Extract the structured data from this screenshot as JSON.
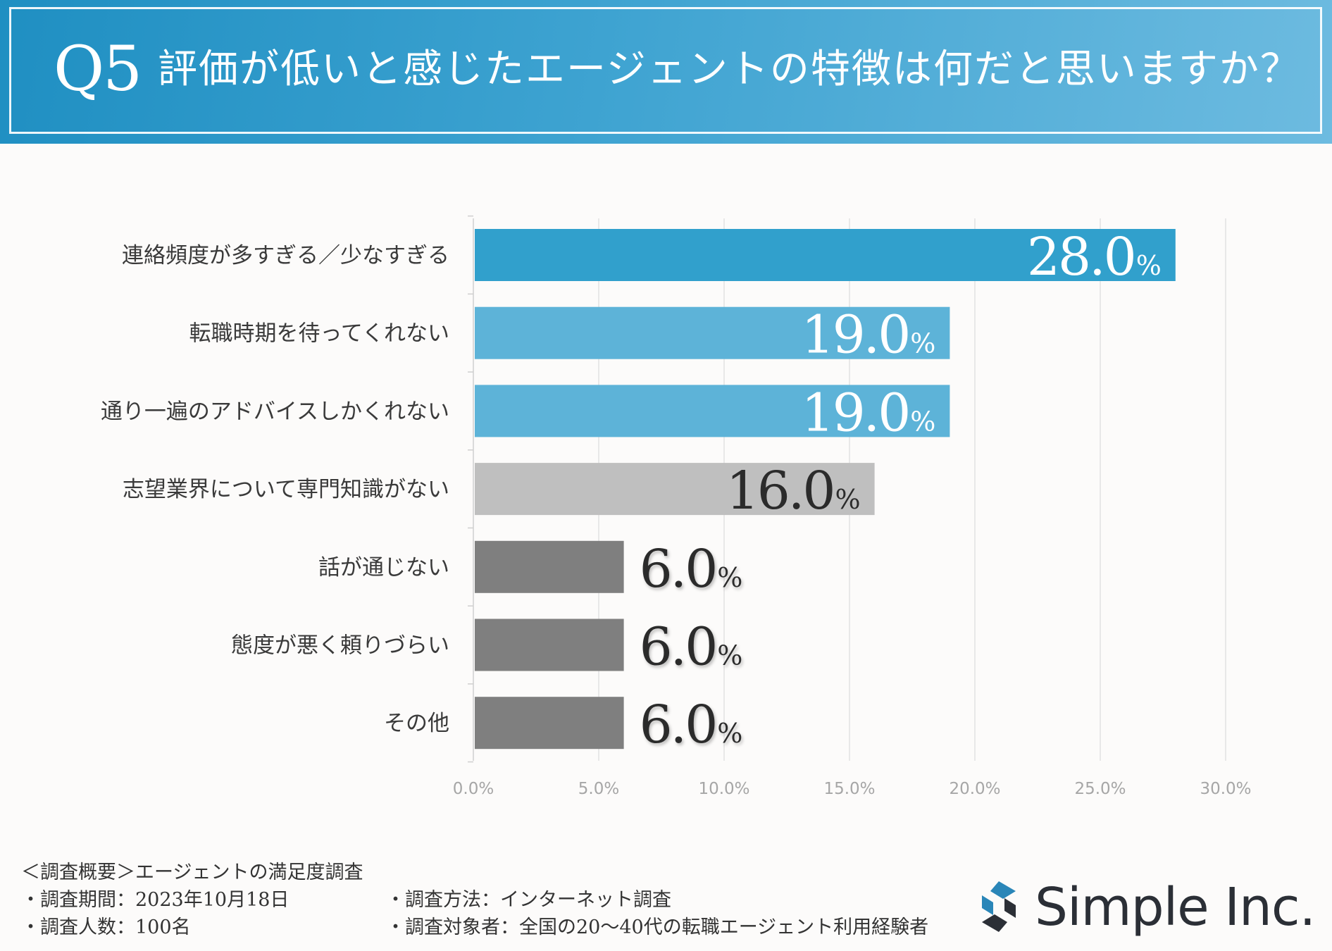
{
  "header": {
    "question_label": "Q5",
    "title": "評価が低いと感じたエージェントの特徴は何だと思いますか？"
  },
  "colors": {
    "header_start": "#1f8fc2",
    "header_end": "#6dbbe0",
    "bar_top": "#31a0cc",
    "bar_blue": "#5db3d8",
    "bar_light_gray": "#bfbfbf",
    "bar_dark_gray": "#7f7f7f",
    "grid": "#e1e1e1",
    "tick_text": "#a6a6a6"
  },
  "chart_data": {
    "type": "bar",
    "orientation": "horizontal",
    "categories": [
      "連絡頻度が多すぎる／少なすぎる",
      "転職時期を待ってくれない",
      "通り一遍のアドバイスしかくれない",
      "志望業界について専門知識がない",
      "話が通じない",
      "態度が悪く頼りづらい",
      "その他"
    ],
    "values": [
      28.0,
      19.0,
      19.0,
      16.0,
      6.0,
      6.0,
      6.0
    ],
    "data_labels": [
      "28.0",
      "19.0",
      "19.0",
      "16.0",
      "6.0",
      "6.0",
      "6.0"
    ],
    "label_unit": "%",
    "bar_color_keys": [
      "bar_top",
      "bar_blue",
      "bar_blue",
      "bar_light_gray",
      "bar_dark_gray",
      "bar_dark_gray",
      "bar_dark_gray"
    ],
    "label_inside": [
      true,
      true,
      true,
      true,
      false,
      false,
      false
    ],
    "label_colors": [
      "#ffffff",
      "#ffffff",
      "#ffffff",
      "#2b2b2b",
      "#2b2b2b",
      "#2b2b2b",
      "#2b2b2b"
    ],
    "xlim": [
      0,
      30
    ],
    "xticks": [
      0,
      5,
      10,
      15,
      20,
      25,
      30
    ],
    "xtick_labels": [
      "0.0%",
      "5.0%",
      "10.0%",
      "15.0%",
      "20.0%",
      "25.0%",
      "30.0%"
    ],
    "grid": true,
    "title": "評価が低いと感じたエージェントの特徴は何だと思いますか？",
    "xlabel": "",
    "ylabel": ""
  },
  "footer": {
    "overview": "＜調査概要＞エージェントの満足度調査",
    "period": "・調査期間：2023年10月18日",
    "count": "・調査人数：100名",
    "method": "・調査方法：インターネット調査",
    "target": "・調査対象者：全国の20～40代の転職エージェント利用経験者"
  },
  "logo": {
    "name": "Simple Inc.",
    "icon": "simple-logo-icon"
  }
}
